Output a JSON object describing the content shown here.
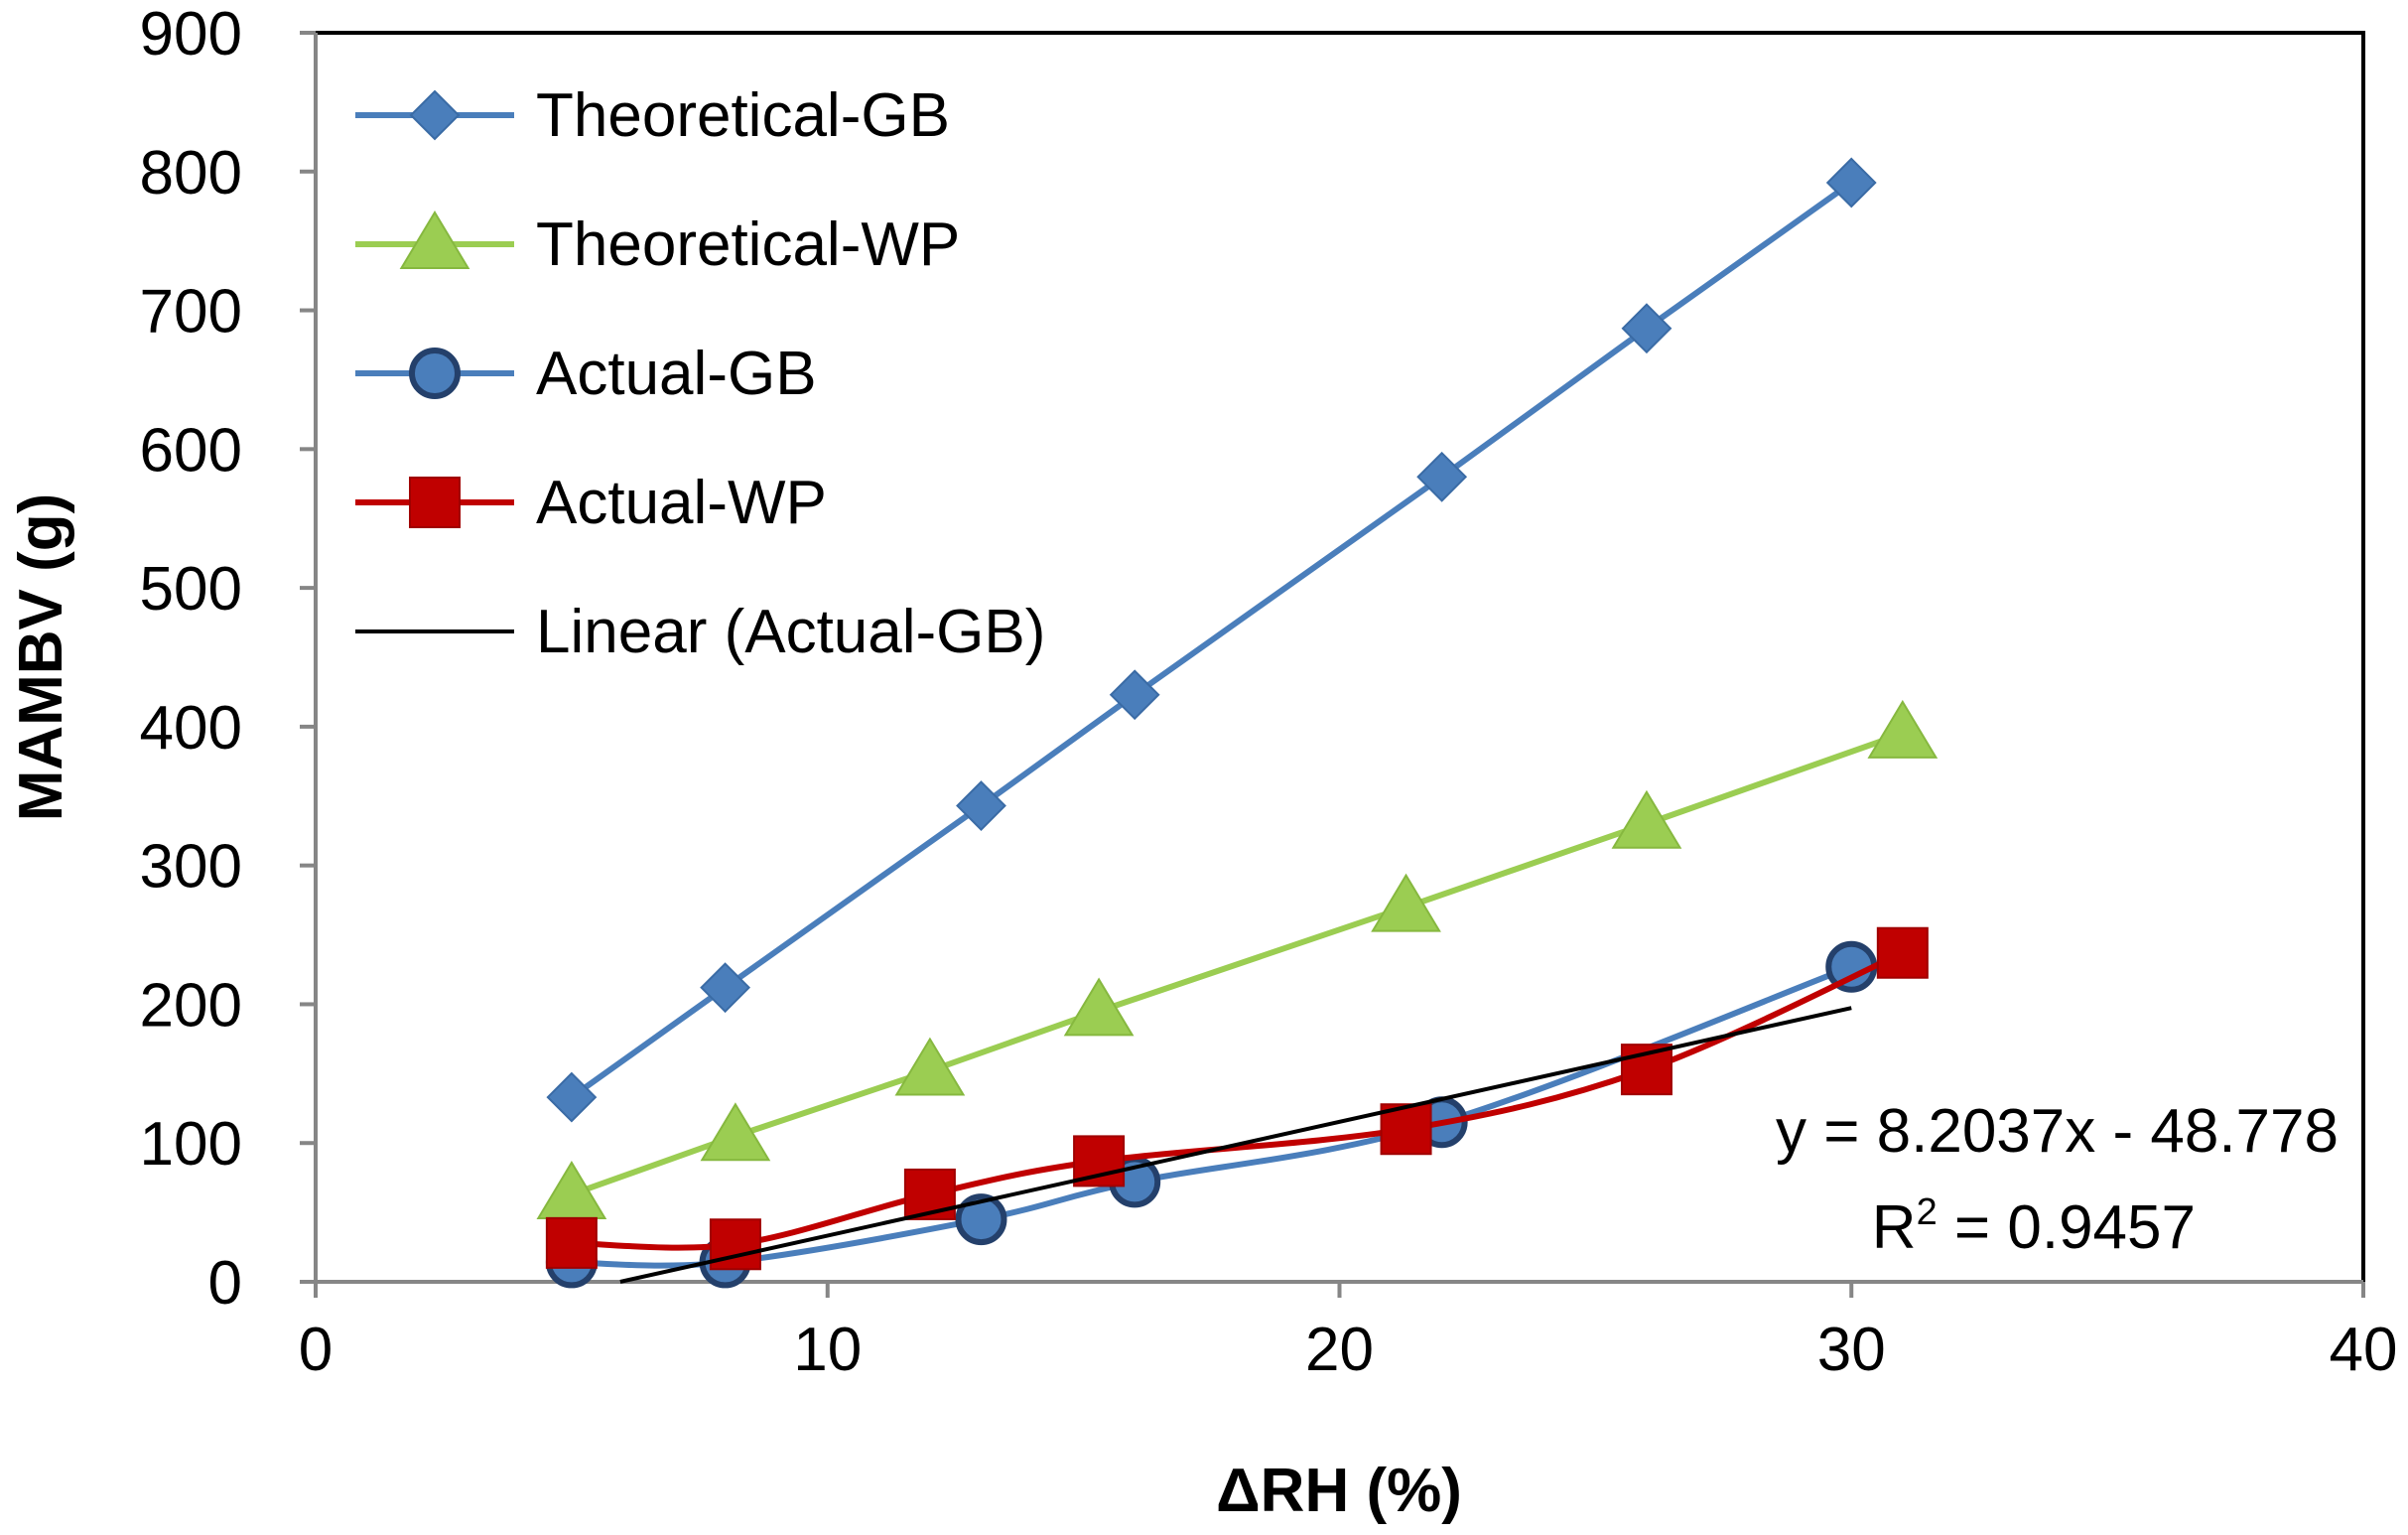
{
  "chart_data": {
    "type": "line",
    "title": "",
    "xlabel": "ΔRH (%)",
    "ylabel": "MAMBV (g)",
    "xlim": [
      0,
      40
    ],
    "ylim": [
      0,
      900
    ],
    "xticks": [
      0,
      10,
      20,
      30,
      40
    ],
    "yticks": [
      0,
      100,
      200,
      300,
      400,
      500,
      600,
      700,
      800,
      900
    ],
    "xtick_labels": [
      "0",
      "10",
      "20",
      "30",
      "40"
    ],
    "ytick_labels": [
      "0",
      "100",
      "200",
      "300",
      "400",
      "500",
      "600",
      "700",
      "800",
      "900"
    ],
    "grid": false,
    "legend_position": "top-left",
    "series": [
      {
        "name": "Theoretical-GB",
        "color": "#4a7ebb",
        "marker": "diamond",
        "x": [
          5,
          8,
          13,
          16,
          22,
          26,
          30
        ],
        "y": [
          133,
          212,
          343,
          423,
          580,
          687,
          792
        ]
      },
      {
        "name": "Theoretical-WP",
        "color": "#9bcd52",
        "marker": "triangle",
        "x": [
          5,
          8.2,
          12,
          15.3,
          21.3,
          26,
          31
        ],
        "y": [
          63,
          105,
          152,
          195,
          270,
          330,
          395
        ]
      },
      {
        "name": "Actual-GB",
        "color": "#4a7ebb",
        "marker": "circle",
        "x": [
          5,
          8,
          13,
          16,
          22,
          30
        ],
        "y": [
          14,
          14,
          45,
          72,
          115,
          227
        ]
      },
      {
        "name": "Actual-WP",
        "color": "#c00000",
        "marker": "square",
        "x": [
          5,
          8.2,
          12,
          15.3,
          21.3,
          26,
          31
        ],
        "y": [
          28,
          27,
          63,
          87,
          110,
          153,
          237
        ]
      },
      {
        "name": "Linear (Actual-GB)",
        "color": "#000000",
        "marker": "none",
        "type": "trendline",
        "slope": 8.2037,
        "intercept": -48.778,
        "x_range": [
          5.95,
          30
        ]
      }
    ],
    "annotations": {
      "equation": "y = 8.2037x - 48.778",
      "r_squared_prefix": "R",
      "r_squared_sup": "2",
      "r_squared_value": " = 0.9457"
    }
  }
}
